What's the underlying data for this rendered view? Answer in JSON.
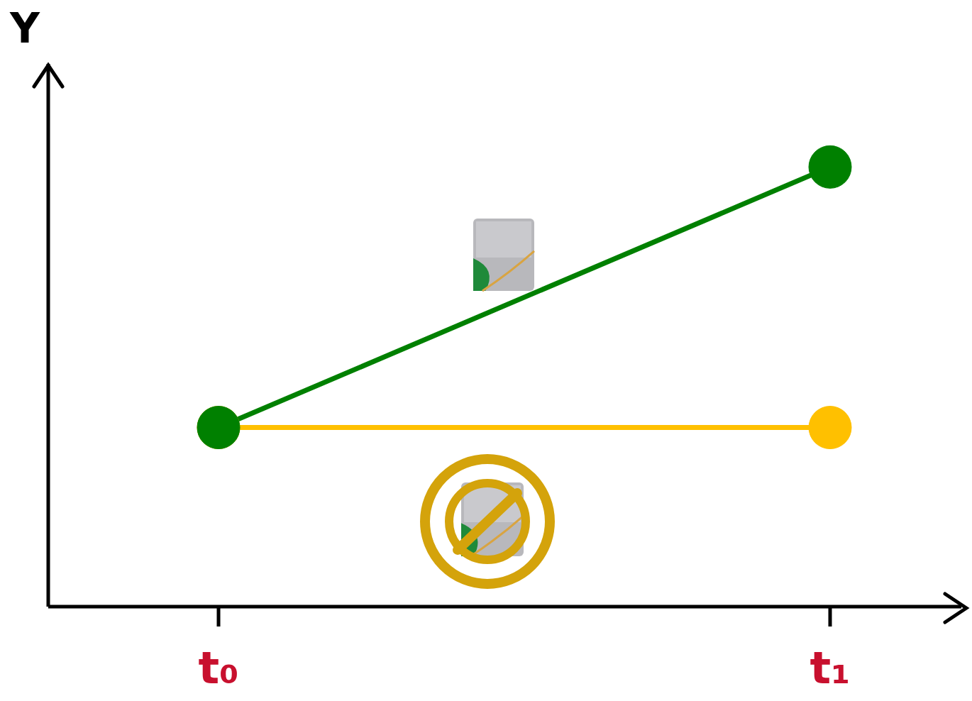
{
  "chart_data": {
    "type": "line",
    "y_label": "Y",
    "categories": [
      "t₀",
      "t₁"
    ],
    "series": [
      {
        "color": "#008000",
        "values": [
          33,
          81
        ],
        "marker": "circle"
      },
      {
        "color": "#FFC000",
        "values": [
          33,
          33
        ],
        "marker": "circle"
      }
    ],
    "ylim": [
      0,
      100
    ],
    "tick_labels": "x",
    "grid": false
  }
}
